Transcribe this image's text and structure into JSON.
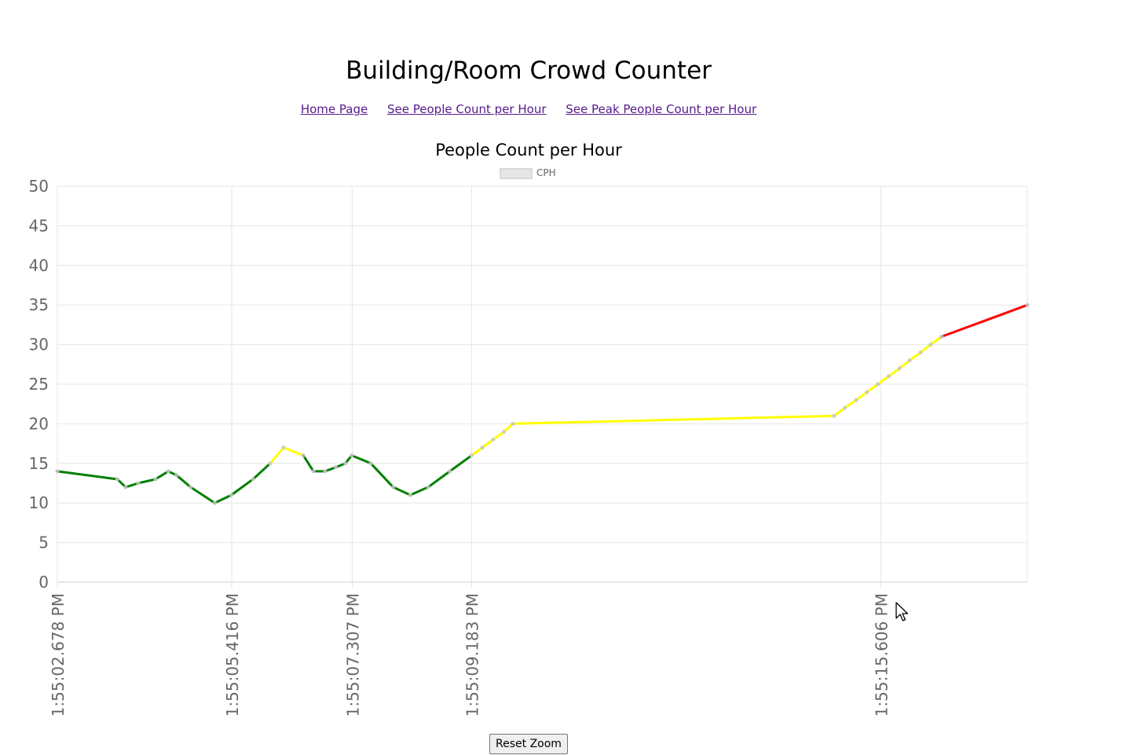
{
  "header": {
    "title": "Building/Room Crowd Counter"
  },
  "nav": {
    "home": "Home Page",
    "per_hour": "See People Count per Hour",
    "peak_per_hour": "See Peak People Count per Hour"
  },
  "controls": {
    "reset_zoom": "Reset Zoom"
  },
  "colors": {
    "low": "#008000",
    "medium": "#ffff00",
    "high": "#ff0000",
    "point": "#c8c8c8",
    "grid": "#e6e6e6"
  },
  "chart_data": {
    "type": "line",
    "title": "People Count per Hour",
    "legend": {
      "position": "top",
      "entries": [
        "CPH"
      ]
    },
    "ylim": [
      0,
      50
    ],
    "yticks": [
      0,
      5,
      10,
      15,
      20,
      25,
      30,
      35,
      40,
      45,
      50
    ],
    "xlim": [
      2.678,
      17.908
    ],
    "xticks": [
      {
        "x": 2.678,
        "label": "1:55:02.678 PM"
      },
      {
        "x": 5.416,
        "label": "1:55:05.416 PM"
      },
      {
        "x": 7.307,
        "label": "1:55:07.307 PM"
      },
      {
        "x": 9.183,
        "label": "1:55:09.183 PM"
      },
      {
        "x": 15.606,
        "label": "1:55:15.606 PM"
      }
    ],
    "grid": true,
    "series": [
      {
        "name": "CPH",
        "x": [
          2.678,
          3.62,
          3.75,
          3.95,
          4.22,
          4.42,
          4.55,
          4.77,
          5.15,
          5.41,
          5.75,
          6.02,
          6.23,
          6.54,
          6.7,
          6.88,
          7.05,
          7.2,
          7.3,
          7.6,
          7.95,
          8.22,
          8.5,
          8.84,
          9.183,
          9.35,
          9.52,
          9.69,
          9.83,
          14.87,
          15.04,
          15.22,
          15.39,
          15.56,
          15.73,
          15.9,
          16.06,
          16.23,
          16.39,
          16.56,
          17.908
        ],
        "y": [
          14,
          13,
          12,
          12.5,
          13,
          14,
          13.5,
          12,
          10,
          11,
          13,
          15,
          17,
          16,
          14,
          14,
          14.5,
          15,
          16,
          15,
          12,
          11,
          12,
          14,
          16,
          17,
          18,
          19,
          20,
          21,
          22,
          23,
          24,
          25,
          26,
          27,
          28,
          29,
          30,
          31,
          35
        ]
      }
    ],
    "color_thresholds": {
      "green_below": 16,
      "yellow_from": 16,
      "red_above": 31
    }
  }
}
